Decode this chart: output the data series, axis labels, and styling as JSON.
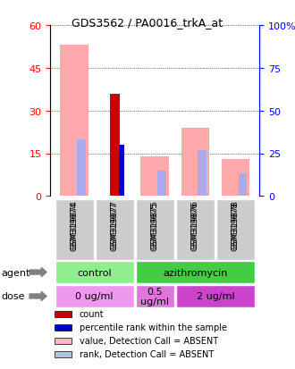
{
  "title": "GDS3562 / PA0016_trkA_at",
  "samples": [
    "GSM319874",
    "GSM319877",
    "GSM319875",
    "GSM319876",
    "GSM319878"
  ],
  "count_values": [
    null,
    36,
    null,
    null,
    null
  ],
  "count_colors": [
    "#cc0000",
    "#cc0000",
    "#cc0000",
    "#cc0000",
    "#cc0000"
  ],
  "percentile_rank_values": [
    null,
    30,
    null,
    null,
    null
  ],
  "percentile_rank_colors": [
    "#0000cc",
    "#0000cc",
    "#0000cc",
    "#0000cc",
    "#0000cc"
  ],
  "value_absent": [
    53,
    null,
    14,
    24,
    13
  ],
  "rank_absent": [
    33,
    null,
    15,
    27,
    13
  ],
  "ylim_left": [
    0,
    60
  ],
  "ylim_right": [
    0,
    100
  ],
  "yticks_left": [
    0,
    15,
    30,
    45,
    60
  ],
  "yticks_right": [
    0,
    25,
    50,
    75,
    100
  ],
  "ytick_labels_left": [
    "0",
    "15",
    "30",
    "45",
    "60"
  ],
  "ytick_labels_right": [
    "0",
    "25",
    "50",
    "75",
    "100%"
  ],
  "agent_groups": [
    {
      "label": "control",
      "start": 0,
      "end": 2,
      "color": "#90ee90"
    },
    {
      "label": "azithromycin",
      "start": 2,
      "end": 5,
      "color": "#44cc44"
    }
  ],
  "dose_groups": [
    {
      "label": "0 ug/ml",
      "start": 0,
      "end": 2,
      "color": "#ee99ee"
    },
    {
      "label": "0.5\nug/ml",
      "start": 2,
      "end": 3,
      "color": "#dd77dd"
    },
    {
      "label": "2 ug/ml",
      "start": 3,
      "end": 5,
      "color": "#cc44cc"
    }
  ],
  "legend_items": [
    {
      "color": "#cc0000",
      "label": "count"
    },
    {
      "color": "#0000cc",
      "label": "percentile rank within the sample"
    },
    {
      "color": "#ffb6c1",
      "label": "value, Detection Call = ABSENT"
    },
    {
      "color": "#b0c4de",
      "label": "rank, Detection Call = ABSENT"
    }
  ],
  "bar_width": 0.35,
  "sample_color": "#cccccc",
  "value_absent_color": "#ffaaaa",
  "rank_absent_color": "#aaaaee"
}
